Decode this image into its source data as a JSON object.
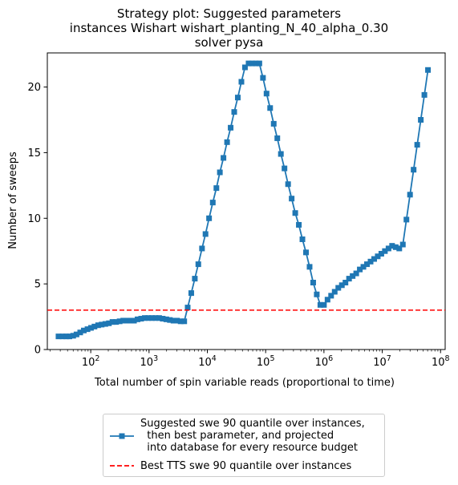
{
  "chart_data": {
    "type": "line",
    "title_lines": [
      "Strategy plot: Suggested parameters",
      "instances Wishart wishart_planting_N_40_alpha_0.30",
      "solver pysa"
    ],
    "xlabel": "Total number of spin variable reads (proportional to time)",
    "ylabel": "Number of sweeps",
    "x_scale": "log",
    "xlim": [
      18,
      120000000
    ],
    "ylim": [
      0,
      22.6
    ],
    "x_ticks": [
      {
        "value": 100,
        "base": "10",
        "exp": "2"
      },
      {
        "value": 1000,
        "base": "10",
        "exp": "3"
      },
      {
        "value": 10000,
        "base": "10",
        "exp": "4"
      },
      {
        "value": 100000,
        "base": "10",
        "exp": "5"
      },
      {
        "value": 1000000,
        "base": "10",
        "exp": "6"
      },
      {
        "value": 10000000,
        "base": "10",
        "exp": "7"
      },
      {
        "value": 100000000,
        "base": "10",
        "exp": "8"
      }
    ],
    "y_ticks": [
      {
        "value": 0,
        "label": "0"
      },
      {
        "value": 5,
        "label": "5"
      },
      {
        "value": 10,
        "label": "10"
      },
      {
        "value": 15,
        "label": "15"
      },
      {
        "value": 20,
        "label": "20"
      }
    ],
    "grid": false,
    "legend_position": "below",
    "series": [
      {
        "name": "Suggested swe 90 quantile over instances,\n  then best parameter, and projected\n  into database for every resource budget",
        "color": "#1f77b4",
        "marker": "square",
        "style": "solid",
        "points": [
          [
            28,
            1.0
          ],
          [
            33,
            1.0
          ],
          [
            38,
            1.0
          ],
          [
            43,
            1.0
          ],
          [
            50,
            1.05
          ],
          [
            57,
            1.15
          ],
          [
            66,
            1.3
          ],
          [
            76,
            1.45
          ],
          [
            88,
            1.55
          ],
          [
            101,
            1.65
          ],
          [
            116,
            1.75
          ],
          [
            134,
            1.85
          ],
          [
            154,
            1.9
          ],
          [
            178,
            1.95
          ],
          [
            205,
            2.0
          ],
          [
            236,
            2.1
          ],
          [
            272,
            2.1
          ],
          [
            313,
            2.15
          ],
          [
            361,
            2.2
          ],
          [
            416,
            2.2
          ],
          [
            479,
            2.2
          ],
          [
            552,
            2.2
          ],
          [
            636,
            2.3
          ],
          [
            733,
            2.35
          ],
          [
            845,
            2.4
          ],
          [
            973,
            2.4
          ],
          [
            1121,
            2.4
          ],
          [
            1292,
            2.4
          ],
          [
            1489,
            2.4
          ],
          [
            1716,
            2.35
          ],
          [
            1977,
            2.3
          ],
          [
            2278,
            2.25
          ],
          [
            2625,
            2.2
          ],
          [
            3024,
            2.2
          ],
          [
            3485,
            2.15
          ],
          [
            4015,
            2.15
          ],
          [
            4600,
            3.2
          ],
          [
            5300,
            4.3
          ],
          [
            6100,
            5.4
          ],
          [
            7000,
            6.5
          ],
          [
            8100,
            7.7
          ],
          [
            9300,
            8.8
          ],
          [
            10700,
            10.0
          ],
          [
            12400,
            11.2
          ],
          [
            14300,
            12.3
          ],
          [
            16400,
            13.5
          ],
          [
            18900,
            14.6
          ],
          [
            21800,
            15.8
          ],
          [
            25100,
            16.9
          ],
          [
            28900,
            18.1
          ],
          [
            33300,
            19.2
          ],
          [
            38400,
            20.4
          ],
          [
            44200,
            21.5
          ],
          [
            51000,
            21.8
          ],
          [
            58800,
            21.8
          ],
          [
            67700,
            21.8
          ],
          [
            78000,
            21.8
          ],
          [
            90000,
            20.7
          ],
          [
            103600,
            19.5
          ],
          [
            119400,
            18.4
          ],
          [
            137600,
            17.2
          ],
          [
            158500,
            16.1
          ],
          [
            182600,
            14.9
          ],
          [
            210400,
            13.8
          ],
          [
            242500,
            12.6
          ],
          [
            279400,
            11.5
          ],
          [
            321900,
            10.4
          ],
          [
            370900,
            9.5
          ],
          [
            427300,
            8.4
          ],
          [
            492400,
            7.4
          ],
          [
            567300,
            6.3
          ],
          [
            653700,
            5.1
          ],
          [
            753100,
            4.2
          ],
          [
            867700,
            3.4
          ],
          [
            999800,
            3.4
          ],
          [
            1152000,
            3.8
          ],
          [
            1327000,
            4.1
          ],
          [
            1529000,
            4.4
          ],
          [
            1762000,
            4.7
          ],
          [
            2030000,
            4.9
          ],
          [
            2339000,
            5.1
          ],
          [
            2695000,
            5.4
          ],
          [
            3105000,
            5.6
          ],
          [
            3578000,
            5.8
          ],
          [
            4122000,
            6.1
          ],
          [
            4750000,
            6.3
          ],
          [
            5473000,
            6.5
          ],
          [
            6306000,
            6.7
          ],
          [
            7266000,
            6.9
          ],
          [
            8372000,
            7.1
          ],
          [
            9646000,
            7.3
          ],
          [
            11110000,
            7.5
          ],
          [
            12810000,
            7.7
          ],
          [
            14750000,
            7.9
          ],
          [
            17000000,
            7.8
          ],
          [
            19590000,
            7.7
          ],
          [
            22570000,
            8.0
          ],
          [
            26000000,
            9.9
          ],
          [
            29950000,
            11.8
          ],
          [
            34520000,
            13.7
          ],
          [
            39770000,
            15.6
          ],
          [
            45830000,
            17.5
          ],
          [
            52800000,
            19.4
          ],
          [
            60840000,
            21.3
          ]
        ]
      },
      {
        "name": "Best TTS swe 90 quantile over instances",
        "color": "#ff0000",
        "marker": "none",
        "style": "dashed",
        "y_constant": 3.0
      }
    ]
  },
  "legend": {
    "entries": [
      {
        "label": "Suggested swe 90 quantile over instances,\n  then best parameter, and projected\n  into database for every resource budget"
      },
      {
        "label": "Best TTS swe 90 quantile over instances"
      }
    ]
  }
}
